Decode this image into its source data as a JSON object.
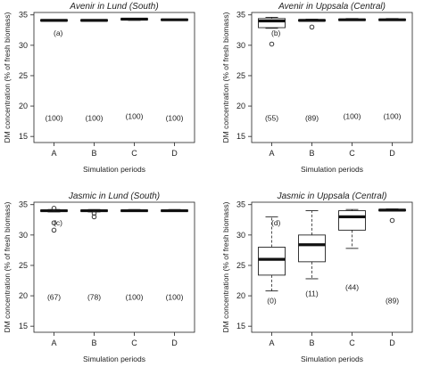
{
  "chart_data": [
    {
      "type": "box",
      "title": "Avenir in Lund (South)",
      "panel_label": "(a)",
      "xlabel": "Simulation periods",
      "ylabel": "DM concentration (% of fresh biomass)",
      "categories": [
        "A",
        "B",
        "C",
        "D"
      ],
      "ylim": [
        14,
        35.4
      ],
      "yticks": [
        15,
        20,
        25,
        30,
        35
      ],
      "boxes": [
        {
          "category": "A",
          "whisker_low": 34.0,
          "q1": 34.0,
          "median": 34.1,
          "q3": 34.2,
          "whisker_high": 34.2,
          "outliers": [],
          "annotation": "(100)",
          "annotation_y": 18.0
        },
        {
          "category": "B",
          "whisker_low": 34.0,
          "q1": 34.0,
          "median": 34.1,
          "q3": 34.2,
          "whisker_high": 34.2,
          "outliers": [],
          "annotation": "(100)",
          "annotation_y": 18.0
        },
        {
          "category": "C",
          "whisker_low": 34.1,
          "q1": 34.2,
          "median": 34.3,
          "q3": 34.4,
          "whisker_high": 34.4,
          "outliers": [],
          "annotation": "(100)",
          "annotation_y": 18.3
        },
        {
          "category": "D",
          "whisker_low": 34.1,
          "q1": 34.1,
          "median": 34.2,
          "q3": 34.3,
          "whisker_high": 34.3,
          "outliers": [],
          "annotation": "(100)",
          "annotation_y": 18.0
        }
      ]
    },
    {
      "type": "box",
      "title": "Avenir in Uppsala (Central)",
      "panel_label": "(b)",
      "xlabel": "Simulation periods",
      "ylabel": "DM concentration (% of fresh biomass)",
      "categories": [
        "A",
        "B",
        "C",
        "D"
      ],
      "ylim": [
        14,
        35.4
      ],
      "yticks": [
        15,
        20,
        25,
        30,
        35
      ],
      "boxes": [
        {
          "category": "A",
          "whisker_low": 32.8,
          "q1": 32.9,
          "median": 34.0,
          "q3": 34.4,
          "whisker_high": 34.6,
          "outliers": [
            30.2
          ],
          "annotation": "(55)",
          "annotation_y": 18.0
        },
        {
          "category": "B",
          "whisker_low": 34.0,
          "q1": 34.0,
          "median": 34.1,
          "q3": 34.2,
          "whisker_high": 34.3,
          "outliers": [
            33.0
          ],
          "annotation": "(89)",
          "annotation_y": 18.0
        },
        {
          "category": "C",
          "whisker_low": 34.1,
          "q1": 34.1,
          "median": 34.2,
          "q3": 34.3,
          "whisker_high": 34.4,
          "outliers": [],
          "annotation": "(100)",
          "annotation_y": 18.3
        },
        {
          "category": "D",
          "whisker_low": 34.1,
          "q1": 34.1,
          "median": 34.2,
          "q3": 34.3,
          "whisker_high": 34.4,
          "outliers": [],
          "annotation": "(100)",
          "annotation_y": 18.3
        }
      ]
    },
    {
      "type": "box",
      "title": "Jasmic in Lund (South)",
      "panel_label": "(c)",
      "xlabel": "Simulation periods",
      "ylabel": "DM concentration (% of fresh biomass)",
      "categories": [
        "A",
        "B",
        "C",
        "D"
      ],
      "ylim": [
        14,
        35.4
      ],
      "yticks": [
        15,
        20,
        25,
        30,
        35
      ],
      "boxes": [
        {
          "category": "A",
          "whisker_low": 33.8,
          "q1": 33.9,
          "median": 34.0,
          "q3": 34.1,
          "whisker_high": 34.2,
          "outliers": [
            34.4,
            32.0,
            30.8
          ],
          "annotation": "(67)",
          "annotation_y": 19.8
        },
        {
          "category": "B",
          "whisker_low": 33.8,
          "q1": 33.9,
          "median": 34.0,
          "q3": 34.1,
          "whisker_high": 34.2,
          "outliers": [
            33.6,
            33.0
          ],
          "annotation": "(78)",
          "annotation_y": 19.8
        },
        {
          "category": "C",
          "whisker_low": 33.9,
          "q1": 33.9,
          "median": 34.0,
          "q3": 34.1,
          "whisker_high": 34.2,
          "outliers": [],
          "annotation": "(100)",
          "annotation_y": 19.8
        },
        {
          "category": "D",
          "whisker_low": 33.9,
          "q1": 33.9,
          "median": 34.0,
          "q3": 34.1,
          "whisker_high": 34.2,
          "outliers": [],
          "annotation": "(100)",
          "annotation_y": 19.8
        }
      ]
    },
    {
      "type": "box",
      "title": "Jasmic in Uppsala (Central)",
      "panel_label": "(d)",
      "xlabel": "Simulation periods",
      "ylabel": "DM concentration (% of fresh biomass)",
      "categories": [
        "A",
        "B",
        "C",
        "D"
      ],
      "ylim": [
        14,
        35.4
      ],
      "yticks": [
        15,
        20,
        25,
        30,
        35
      ],
      "boxes": [
        {
          "category": "A",
          "whisker_low": 20.8,
          "q1": 23.4,
          "median": 26.0,
          "q3": 28.0,
          "whisker_high": 33.0,
          "outliers": [],
          "annotation": "(0)",
          "annotation_y": 19.2
        },
        {
          "category": "B",
          "whisker_low": 22.8,
          "q1": 25.6,
          "median": 28.4,
          "q3": 30.0,
          "whisker_high": 34.0,
          "outliers": [],
          "annotation": "(11)",
          "annotation_y": 20.4
        },
        {
          "category": "C",
          "whisker_low": 27.8,
          "q1": 30.8,
          "median": 33.0,
          "q3": 34.0,
          "whisker_high": 34.2,
          "outliers": [],
          "annotation": "(44)",
          "annotation_y": 21.4
        },
        {
          "category": "D",
          "whisker_low": 34.0,
          "q1": 34.0,
          "median": 34.1,
          "q3": 34.2,
          "whisker_high": 34.3,
          "outliers": [
            32.4
          ],
          "annotation": "(89)",
          "annotation_y": 19.2
        }
      ]
    }
  ]
}
